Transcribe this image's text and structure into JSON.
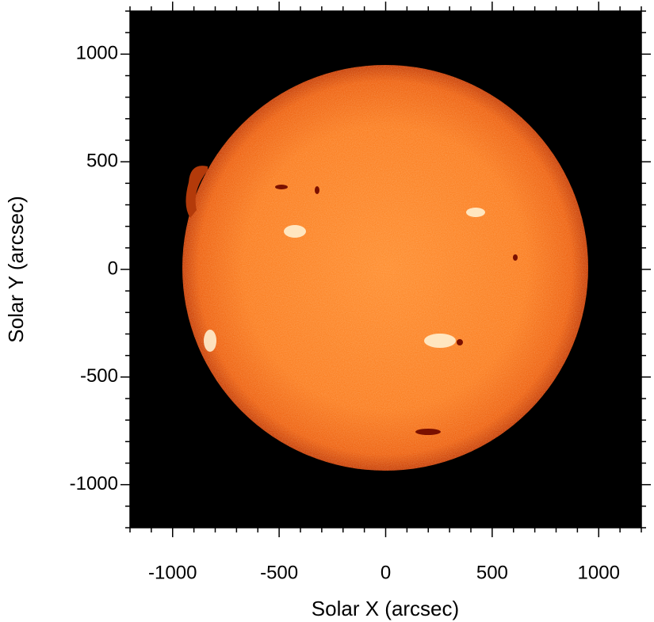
{
  "chart_data": {
    "type": "image",
    "xlabel": "Solar X (arcsec)",
    "ylabel": "Solar Y (arcsec)",
    "xlim": [
      -1200,
      1200
    ],
    "ylim": [
      -1200,
      1200
    ],
    "xticks": [
      -1000,
      -500,
      0,
      500,
      1000
    ],
    "yticks": [
      -1000,
      -500,
      0,
      500,
      1000
    ],
    "xminorticks": [
      -1200,
      -1100,
      -900,
      -800,
      -700,
      -600,
      -400,
      -300,
      -200,
      -100,
      100,
      200,
      300,
      400,
      600,
      700,
      800,
      900,
      1100,
      1200
    ],
    "yminorticks": [
      -1200,
      -1100,
      -900,
      -800,
      -700,
      -600,
      -400,
      -300,
      -200,
      -100,
      100,
      200,
      300,
      400,
      600,
      700,
      800,
      900,
      1100,
      1200
    ]
  }
}
